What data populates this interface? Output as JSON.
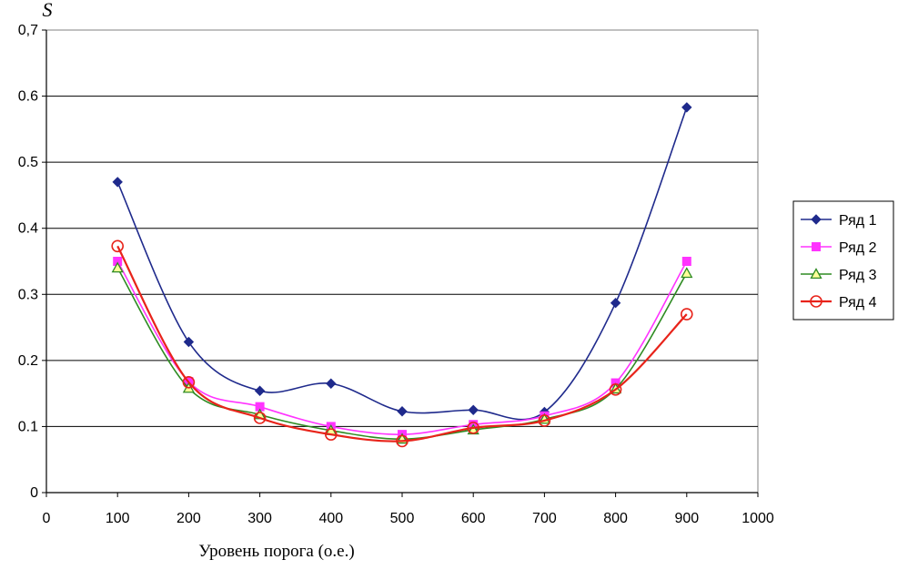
{
  "chart_data": {
    "type": "line",
    "ylabel": "S",
    "xlabel": "Уровень порога (о.е.)",
    "xlim": [
      0,
      1000
    ],
    "ylim": [
      0,
      0.7
    ],
    "x_ticks": [
      0,
      100,
      200,
      300,
      400,
      500,
      600,
      700,
      800,
      900,
      1000
    ],
    "x_tick_labels": [
      "0",
      "100",
      "200",
      "300",
      "400",
      "500",
      "600",
      "700",
      "800",
      "900",
      "1000"
    ],
    "y_ticks": [
      0,
      0.1,
      0.2,
      0.3,
      0.4,
      0.5,
      0.6,
      0.7
    ],
    "y_tick_labels": [
      "0",
      "0.1",
      "0.2",
      "0.3",
      "0.4",
      "0.5",
      "0.6",
      "0,7"
    ],
    "grid": "horizontal",
    "smooth": true,
    "legend_position": "right",
    "x": [
      100,
      200,
      300,
      400,
      500,
      600,
      700,
      800,
      900
    ],
    "series": [
      {
        "name": "Ряд 1",
        "color": "#1F2A8C",
        "marker": "diamond",
        "values": [
          0.47,
          0.228,
          0.154,
          0.165,
          0.123,
          0.125,
          0.122,
          0.287,
          0.583
        ]
      },
      {
        "name": "Ряд 2",
        "color": "#FF33FF",
        "marker": "square",
        "values": [
          0.35,
          0.168,
          0.13,
          0.1,
          0.088,
          0.103,
          0.116,
          0.166,
          0.35
        ]
      },
      {
        "name": "Ряд 3",
        "color": "#2E8B22",
        "marker": "triangle",
        "values": [
          0.34,
          0.158,
          0.118,
          0.094,
          0.081,
          0.095,
          0.111,
          0.157,
          0.332
        ]
      },
      {
        "name": "Ряд 4",
        "color": "#E8231A",
        "marker": "circle",
        "values": [
          0.373,
          0.167,
          0.113,
          0.088,
          0.078,
          0.098,
          0.109,
          0.156,
          0.27
        ]
      }
    ]
  }
}
